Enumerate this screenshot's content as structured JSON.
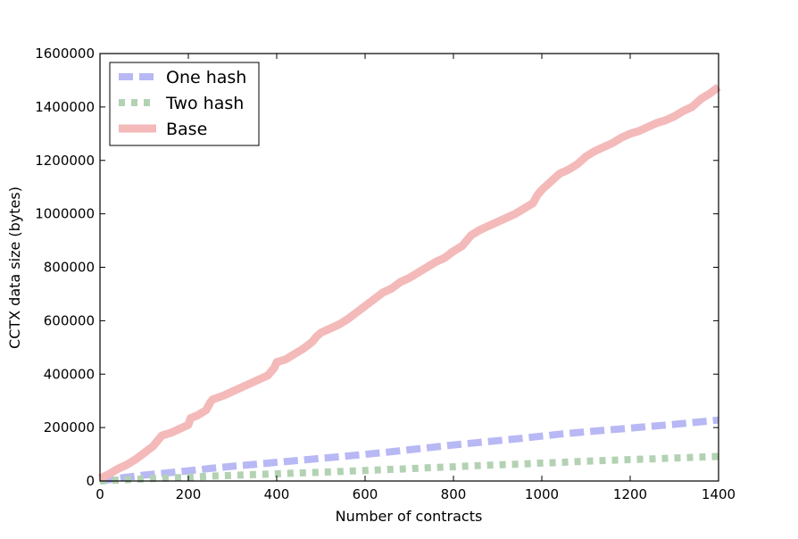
{
  "chart_data": {
    "type": "line",
    "title": "",
    "xlabel": "Number of contracts",
    "ylabel": "CCTX data size (bytes)",
    "xlim": [
      0,
      1400
    ],
    "ylim": [
      0,
      1600000
    ],
    "xticks": [
      0,
      200,
      400,
      600,
      800,
      1000,
      1200,
      1400
    ],
    "yticks": [
      0,
      200000,
      400000,
      600000,
      800000,
      1000000,
      1200000,
      1400000,
      1600000
    ],
    "xtick_labels": [
      "0",
      "200",
      "400",
      "600",
      "800",
      "1000",
      "1200",
      "1400"
    ],
    "ytick_labels": [
      "0",
      "200000",
      "400000",
      "600000",
      "800000",
      "1000000",
      "1200000",
      "1400000",
      "1600000"
    ],
    "grid": false,
    "legend_position": "upper-left",
    "series": [
      {
        "name": "One hash",
        "color": "#b8b8f4",
        "style": "dashed",
        "x": [
          0,
          50,
          100,
          150,
          200,
          250,
          300,
          350,
          400,
          450,
          500,
          550,
          600,
          650,
          700,
          750,
          800,
          850,
          900,
          950,
          1000,
          1050,
          1100,
          1150,
          1200,
          1250,
          1300,
          1350,
          1400
        ],
        "y": [
          0,
          12000,
          22000,
          30000,
          38000,
          47000,
          55000,
          62000,
          70000,
          77000,
          85000,
          92000,
          100000,
          108000,
          117000,
          126000,
          135000,
          143000,
          151000,
          159000,
          168000,
          177000,
          184000,
          191000,
          198000,
          205000,
          212000,
          220000,
          228000
        ]
      },
      {
        "name": "Two hash",
        "color": "#b3d2b3",
        "style": "dotted",
        "x": [
          0,
          50,
          100,
          150,
          200,
          250,
          300,
          350,
          400,
          450,
          500,
          550,
          600,
          650,
          700,
          750,
          800,
          850,
          900,
          950,
          1000,
          1050,
          1100,
          1150,
          1200,
          1250,
          1300,
          1350,
          1400
        ],
        "y": [
          0,
          4000,
          8000,
          11000,
          14000,
          18000,
          21000,
          24000,
          27000,
          30000,
          33000,
          36000,
          39000,
          43000,
          46000,
          50000,
          53000,
          57000,
          60000,
          63000,
          67000,
          70000,
          74000,
          77000,
          80000,
          83000,
          86000,
          89000,
          92000
        ]
      },
      {
        "name": "Base",
        "color": "#f4b9b9",
        "style": "solid",
        "x": [
          0,
          20,
          40,
          60,
          80,
          100,
          120,
          135,
          140,
          160,
          180,
          200,
          205,
          220,
          240,
          250,
          255,
          280,
          300,
          320,
          340,
          360,
          380,
          390,
          395,
          400,
          420,
          440,
          460,
          480,
          490,
          500,
          520,
          540,
          560,
          580,
          600,
          620,
          640,
          660,
          680,
          700,
          720,
          740,
          760,
          780,
          800,
          820,
          840,
          860,
          880,
          900,
          920,
          940,
          960,
          980,
          990,
          1000,
          1020,
          1040,
          1060,
          1080,
          1090,
          1100,
          1120,
          1140,
          1160,
          1180,
          1200,
          1220,
          1240,
          1260,
          1280,
          1300,
          1320,
          1340,
          1360,
          1380,
          1400
        ],
        "y": [
          10000,
          25000,
          45000,
          60000,
          80000,
          105000,
          130000,
          160000,
          170000,
          180000,
          195000,
          210000,
          235000,
          245000,
          265000,
          295000,
          305000,
          320000,
          335000,
          350000,
          365000,
          380000,
          395000,
          415000,
          425000,
          445000,
          455000,
          475000,
          495000,
          520000,
          540000,
          555000,
          570000,
          585000,
          605000,
          630000,
          655000,
          680000,
          705000,
          720000,
          745000,
          760000,
          780000,
          800000,
          820000,
          835000,
          860000,
          880000,
          920000,
          940000,
          955000,
          970000,
          985000,
          1000000,
          1020000,
          1040000,
          1070000,
          1090000,
          1120000,
          1150000,
          1165000,
          1185000,
          1200000,
          1215000,
          1235000,
          1250000,
          1265000,
          1285000,
          1300000,
          1310000,
          1325000,
          1340000,
          1350000,
          1365000,
          1385000,
          1400000,
          1430000,
          1450000,
          1475000
        ]
      }
    ]
  }
}
